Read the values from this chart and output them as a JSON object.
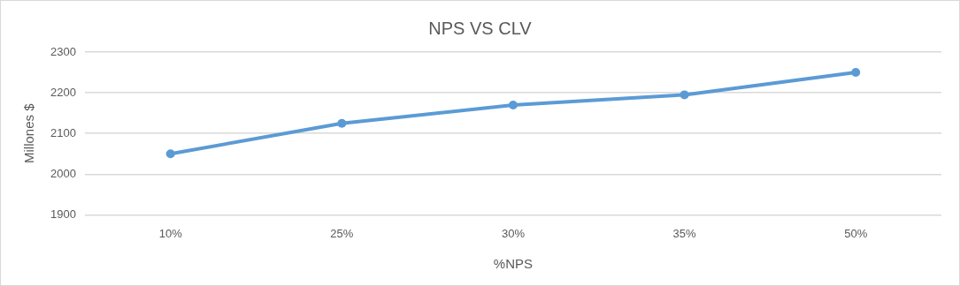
{
  "chart_data": {
    "type": "line",
    "title": "NPS VS CLV",
    "xlabel": "%NPS",
    "ylabel": "Millones $",
    "categories": [
      "10%",
      "25%",
      "30%",
      "35%",
      "50%"
    ],
    "series": [
      {
        "color": "#5b9bd5",
        "values": [
          2050,
          2125,
          2170,
          2195,
          2250
        ]
      }
    ],
    "ylim": [
      1900,
      2300
    ],
    "yticks": [
      1900,
      2000,
      2100,
      2200,
      2300
    ],
    "grid": "y",
    "legend": false,
    "marker": "circle",
    "line_style": "solid"
  }
}
